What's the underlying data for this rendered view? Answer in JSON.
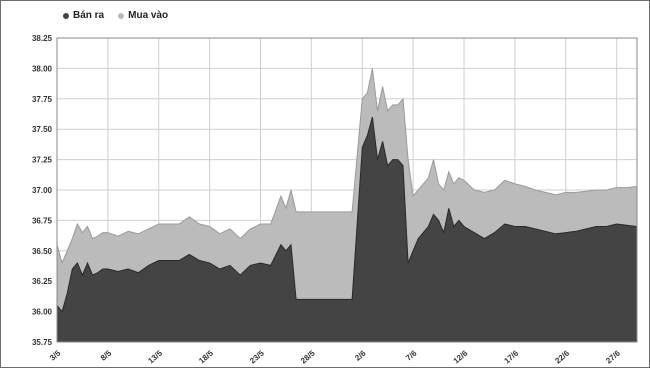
{
  "chart_data": {
    "type": "area",
    "legend_position": "top-left",
    "grid": true,
    "ylim": [
      35.75,
      38.25
    ],
    "yticks": [
      "38.25",
      "38.00",
      "37.75",
      "37.50",
      "37.25",
      "37.00",
      "36.75",
      "36.50",
      "36.25",
      "36.00",
      "35.75"
    ],
    "ytick_values": [
      38.25,
      38.0,
      37.75,
      37.5,
      37.25,
      37.0,
      36.75,
      36.5,
      36.25,
      36.0,
      35.75
    ],
    "xlim": [
      1,
      58
    ],
    "xticks": [
      "3/5",
      "8/5",
      "13/5",
      "18/5",
      "23/5",
      "28/5",
      "2/6",
      "7/6",
      "12/6",
      "17/6",
      "22/6",
      "27/6"
    ],
    "xtick_values": [
      1,
      6,
      11,
      16,
      21,
      26,
      31,
      36,
      41,
      46,
      51,
      56
    ],
    "x": [
      1,
      1.5,
      2,
      2.5,
      3,
      3.5,
      4,
      4.5,
      5,
      5.5,
      6,
      7,
      8,
      9,
      10,
      11,
      12,
      13,
      14,
      15,
      16,
      17,
      18,
      19,
      20,
      21,
      22,
      23,
      23.5,
      24,
      24.5,
      25,
      30,
      31,
      31.5,
      32,
      32.5,
      33,
      33.5,
      34,
      34.5,
      35,
      35.5,
      36,
      36.5,
      37,
      37.5,
      38,
      38.5,
      39,
      39.5,
      40,
      40.5,
      41,
      42,
      43,
      44,
      45,
      46,
      47,
      48,
      49,
      50,
      51,
      52,
      53,
      54,
      55,
      56,
      57,
      58
    ],
    "series": [
      {
        "name": "Bán ra",
        "color": "#444444",
        "values": [
          36.05,
          36.0,
          36.15,
          36.35,
          36.4,
          36.3,
          36.4,
          36.3,
          36.32,
          36.35,
          36.35,
          36.33,
          36.35,
          36.32,
          36.38,
          36.42,
          36.42,
          36.42,
          36.47,
          36.42,
          36.4,
          36.35,
          36.38,
          36.3,
          36.38,
          36.4,
          36.38,
          36.55,
          36.5,
          36.55,
          36.1,
          36.1,
          36.1,
          37.35,
          37.45,
          37.6,
          37.25,
          37.4,
          37.2,
          37.25,
          37.25,
          37.2,
          36.4,
          36.5,
          36.6,
          36.65,
          36.7,
          36.8,
          36.75,
          36.65,
          36.85,
          36.7,
          36.75,
          36.7,
          36.65,
          36.6,
          36.65,
          36.72,
          36.7,
          36.7,
          36.68,
          36.66,
          36.64,
          36.65,
          36.66,
          36.68,
          36.7,
          36.7,
          36.72,
          36.71,
          36.7
        ]
      },
      {
        "name": "Mua vào",
        "color": "#bbbbbb",
        "values": [
          36.55,
          36.4,
          36.5,
          36.6,
          36.72,
          36.65,
          36.7,
          36.6,
          36.62,
          36.65,
          36.65,
          36.62,
          36.66,
          36.64,
          36.68,
          36.72,
          36.72,
          36.72,
          36.78,
          36.72,
          36.7,
          36.64,
          36.68,
          36.6,
          36.68,
          36.72,
          36.72,
          36.95,
          36.85,
          37.0,
          36.82,
          36.82,
          36.82,
          37.75,
          37.8,
          38.0,
          37.65,
          37.85,
          37.65,
          37.7,
          37.7,
          37.75,
          37.25,
          36.95,
          37.0,
          37.05,
          37.1,
          37.25,
          37.05,
          37.0,
          37.15,
          37.05,
          37.1,
          37.08,
          37.0,
          36.98,
          37.0,
          37.08,
          37.05,
          37.03,
          37.0,
          36.98,
          36.96,
          36.98,
          36.98,
          36.99,
          37.0,
          37.0,
          37.02,
          37.02,
          37.03
        ]
      }
    ]
  }
}
